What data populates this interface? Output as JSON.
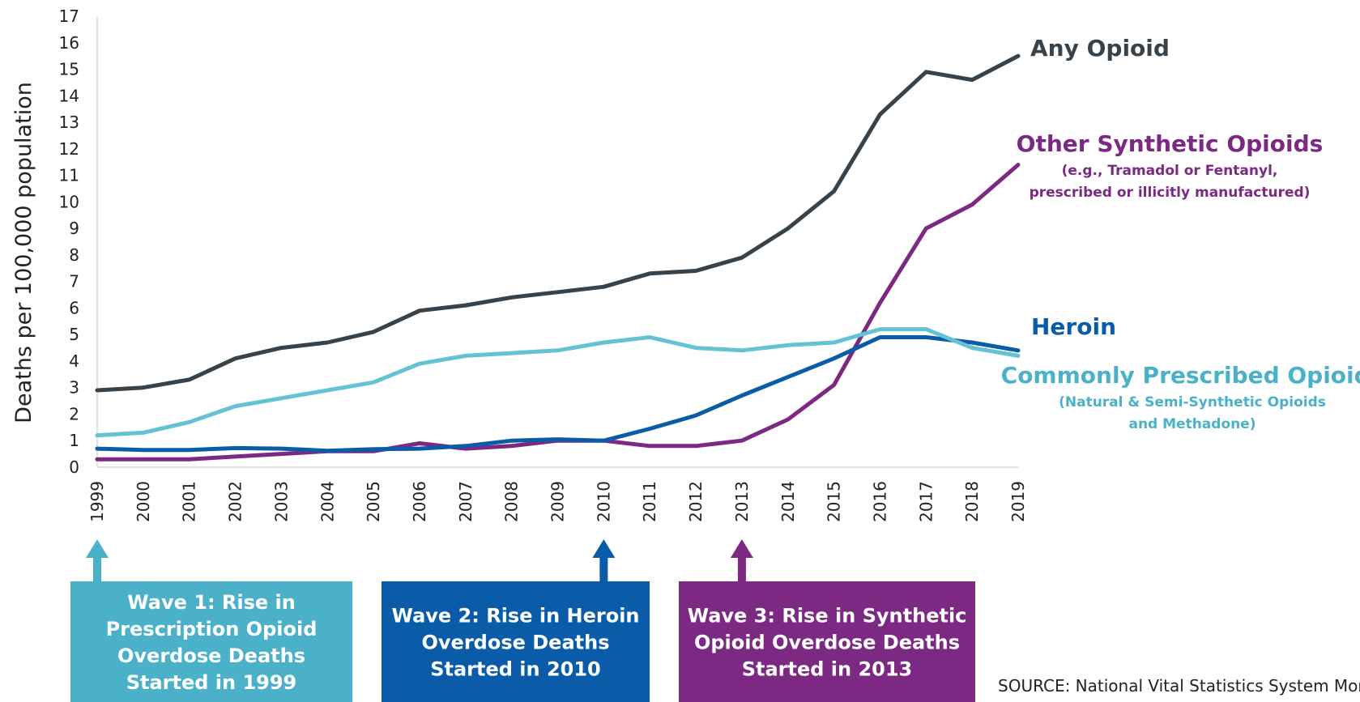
{
  "chart_data": {
    "type": "line",
    "title": "",
    "xlabel": "",
    "ylabel": "Deaths per 100,000 population",
    "ylim": [
      0,
      17
    ],
    "yticks": [
      0,
      1,
      2,
      3,
      4,
      5,
      6,
      7,
      8,
      9,
      10,
      11,
      12,
      13,
      14,
      15,
      16,
      17
    ],
    "grid": false,
    "x": [
      "1999",
      "2000",
      "2001",
      "2002",
      "2003",
      "2004",
      "2005",
      "2006",
      "2007",
      "2008",
      "2009",
      "2010",
      "2011",
      "2012",
      "2013",
      "2014",
      "2015",
      "2016",
      "2017",
      "2018",
      "2019"
    ],
    "series": [
      {
        "name": "Any Opioid",
        "color": "#37424a",
        "values": [
          2.9,
          3.0,
          3.3,
          4.1,
          4.5,
          4.7,
          5.1,
          5.9,
          6.1,
          6.4,
          6.6,
          6.8,
          7.3,
          7.4,
          7.9,
          9.0,
          10.4,
          13.3,
          14.9,
          14.6,
          15.5
        ]
      },
      {
        "name": "Other Synthetic Opioids",
        "note": "(e.g., Tramadol or Fentanyl, prescribed or illicitly manufactured)",
        "color": "#7b2982",
        "values": [
          0.3,
          0.3,
          0.3,
          0.4,
          0.5,
          0.6,
          0.6,
          0.9,
          0.7,
          0.8,
          1.0,
          1.0,
          0.8,
          0.8,
          1.0,
          1.8,
          3.1,
          6.2,
          9.0,
          9.9,
          11.4
        ]
      },
      {
        "name": "Heroin",
        "color": "#0a5ca8",
        "values": [
          0.7,
          0.65,
          0.65,
          0.72,
          0.7,
          0.62,
          0.68,
          0.7,
          0.8,
          1.0,
          1.05,
          1.0,
          1.45,
          1.95,
          2.7,
          3.4,
          4.1,
          4.9,
          4.9,
          4.7,
          4.4
        ]
      },
      {
        "name": "Commonly Prescribed Opioids",
        "note": "(Natural & Semi-Synthetic Opioids and Methadone)",
        "color": "#64c2d4",
        "values": [
          1.2,
          1.3,
          1.7,
          2.3,
          2.6,
          2.9,
          3.2,
          3.9,
          4.2,
          4.3,
          4.4,
          4.7,
          4.9,
          4.5,
          4.4,
          4.6,
          4.7,
          5.2,
          5.2,
          4.5,
          4.2
        ]
      }
    ],
    "annotations": [
      {
        "year": "1999",
        "color": "#4bb1c9",
        "text": [
          "Wave 1: Rise in",
          "Prescription Opioid",
          "Overdose Deaths",
          "Started in 1999"
        ]
      },
      {
        "year": "2010",
        "color": "#0a5ca8",
        "text": [
          "Wave 2: Rise in Heroin",
          "Overdose Deaths",
          "Started in 2010"
        ]
      },
      {
        "year": "2013",
        "color": "#7b2982",
        "text": [
          "Wave 3: Rise in Synthetic",
          "Opioid Overdose Deaths",
          "Started in 2013"
        ]
      }
    ],
    "series_labels": {
      "any_opioid": "Any Opioid",
      "synthetic_main": "Other Synthetic Opioids",
      "synthetic_sub1": "(e.g., Tramadol or Fentanyl,",
      "synthetic_sub2": "prescribed or illicitly manufactured)",
      "heroin": "Heroin",
      "prescribed_main": "Commonly Prescribed Opioids",
      "prescribed_sub1": "(Natural & Semi-Synthetic Opioids",
      "prescribed_sub2": "and Methadone)"
    },
    "source": "SOURCE: National Vital Statistics System Mortality"
  }
}
